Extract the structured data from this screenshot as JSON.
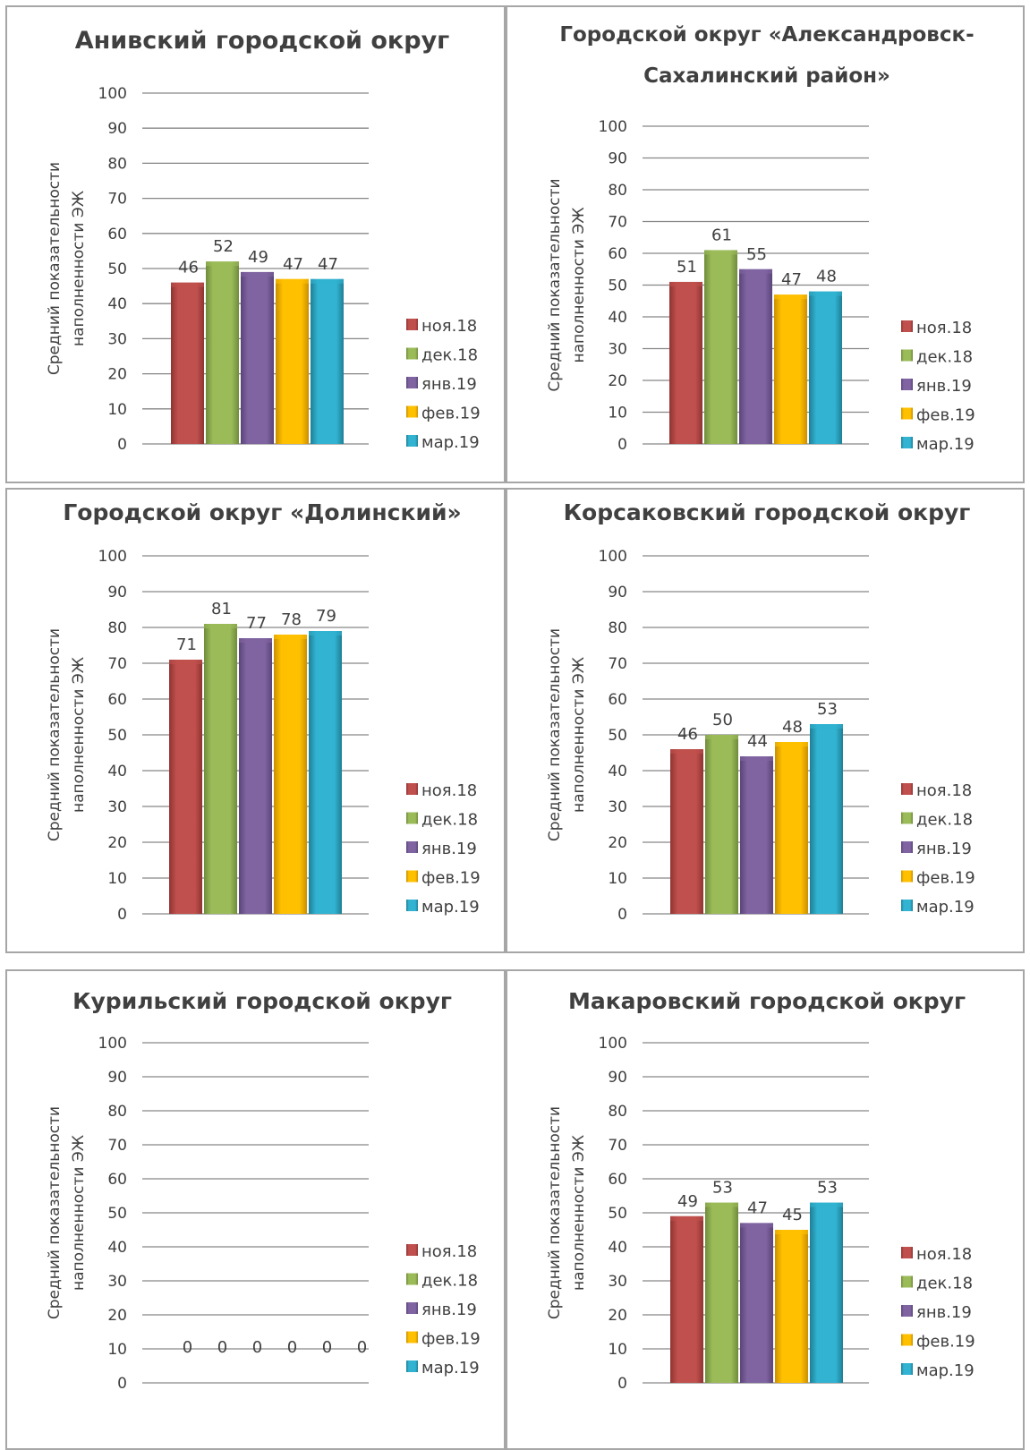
{
  "legend_entries": [
    "ноя.18",
    "дек.18",
    "янв.19",
    "фев.19",
    "мар.19"
  ],
  "series_colors": [
    "#c0504d",
    "#9bbb59",
    "#8064a2",
    "#ffc000",
    "#31b3d1"
  ],
  "series_colors_dark": [
    "#8e3432",
    "#6f8b3a",
    "#5a4478",
    "#c98f00",
    "#1f7f96"
  ],
  "ylabel_lines": [
    "Средний показательности",
    "наполненности ЭЖ"
  ],
  "chart_data": [
    {
      "type": "bar",
      "title_lines": [
        "Анивский городской округ"
      ],
      "series": [
        {
          "name": "ноя.18",
          "values": [
            46
          ]
        },
        {
          "name": "дек.18",
          "values": [
            52
          ]
        },
        {
          "name": "янв.19",
          "values": [
            49
          ]
        },
        {
          "name": "фев.19",
          "values": [
            47
          ]
        },
        {
          "name": "мар.19",
          "values": [
            47
          ]
        }
      ],
      "yticks": [
        "0",
        "10",
        "20",
        "30",
        "40",
        "50",
        "60",
        "70",
        "80",
        "90",
        "100"
      ],
      "ylim": [
        0,
        100
      ],
      "grid": true,
      "legend": "right"
    },
    {
      "type": "bar",
      "title_lines": [
        "Городской округ «Александровск-",
        "Сахалинский район»"
      ],
      "series": [
        {
          "name": "ноя.18",
          "values": [
            51
          ]
        },
        {
          "name": "дек.18",
          "values": [
            61
          ]
        },
        {
          "name": "янв.19",
          "values": [
            55
          ]
        },
        {
          "name": "фев.19",
          "values": [
            47
          ]
        },
        {
          "name": "мар.19",
          "values": [
            48
          ]
        }
      ],
      "yticks": [
        "0",
        "10",
        "20",
        "30",
        "40",
        "50",
        "60",
        "70",
        "80",
        "90",
        "100"
      ],
      "ylim": [
        0,
        100
      ],
      "grid": true,
      "legend": "right"
    },
    {
      "type": "bar",
      "title_lines": [
        "Городской округ «Долинский»"
      ],
      "series": [
        {
          "name": "ноя.18",
          "values": [
            71
          ]
        },
        {
          "name": "дек.18",
          "values": [
            81
          ]
        },
        {
          "name": "янв.19",
          "values": [
            77
          ]
        },
        {
          "name": "фев.19",
          "values": [
            78
          ]
        },
        {
          "name": "мар.19",
          "values": [
            79
          ]
        }
      ],
      "yticks": [
        "0",
        "10",
        "20",
        "30",
        "40",
        "50",
        "60",
        "70",
        "80",
        "90",
        "100"
      ],
      "ylim": [
        0,
        100
      ],
      "grid": true,
      "legend": "right"
    },
    {
      "type": "bar",
      "title_lines": [
        "Корсаковский городской округ"
      ],
      "series": [
        {
          "name": "ноя.18",
          "values": [
            46
          ]
        },
        {
          "name": "дек.18",
          "values": [
            50
          ]
        },
        {
          "name": "янв.19",
          "values": [
            44
          ]
        },
        {
          "name": "фев.19",
          "values": [
            48
          ]
        },
        {
          "name": "мар.19",
          "values": [
            53
          ]
        }
      ],
      "yticks": [
        "0",
        "10",
        "20",
        "30",
        "40",
        "50",
        "60",
        "70",
        "80",
        "90",
        "100"
      ],
      "ylim": [
        0,
        100
      ],
      "grid": true,
      "legend": "right"
    },
    {
      "type": "bar",
      "title_lines": [
        "Курильский городской округ"
      ],
      "series": [
        {
          "name": "ноя.18",
          "values": [
            0
          ]
        },
        {
          "name": "дек.18",
          "values": [
            0
          ]
        },
        {
          "name": "янв.19",
          "values": [
            0
          ]
        },
        {
          "name": "фев.19",
          "values": [
            0
          ]
        },
        {
          "name": "мар.19",
          "values": [
            0
          ]
        }
      ],
      "extra_labels": [
        "0"
      ],
      "yticks": [
        "0",
        "10",
        "20",
        "30",
        "40",
        "50",
        "60",
        "70",
        "80",
        "90",
        "100"
      ],
      "ylim": [
        0,
        100
      ],
      "grid": true,
      "legend": "right"
    },
    {
      "type": "bar",
      "title_lines": [
        "Макаровский городской округ"
      ],
      "series": [
        {
          "name": "ноя.18",
          "values": [
            49
          ]
        },
        {
          "name": "дек.18",
          "values": [
            53
          ]
        },
        {
          "name": "янв.19",
          "values": [
            47
          ]
        },
        {
          "name": "фев.19",
          "values": [
            45
          ]
        },
        {
          "name": "мар.19",
          "values": [
            53
          ]
        }
      ],
      "yticks": [
        "0",
        "10",
        "20",
        "30",
        "40",
        "50",
        "60",
        "70",
        "80",
        "90",
        "100"
      ],
      "ylim": [
        0,
        100
      ],
      "grid": true,
      "legend": "right"
    }
  ]
}
